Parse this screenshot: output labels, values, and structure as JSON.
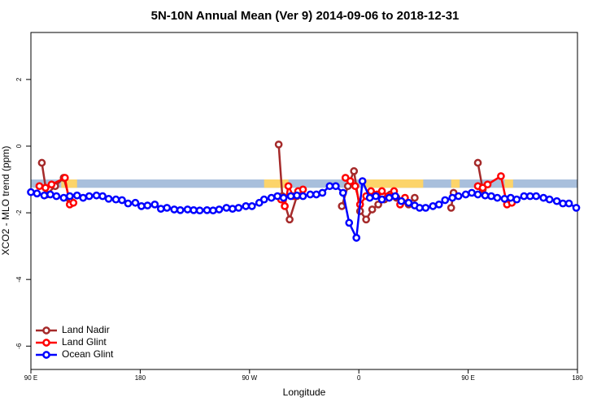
{
  "chart_data": {
    "type": "line",
    "title": "5N-10N Annual Mean (Ver 9)   2014-09-06 to 2018-12-31",
    "x_label": "Longitude",
    "y_label": "XCO2 - MLO trend (ppm)",
    "xlim": [
      90,
      540
    ],
    "ylim": [
      -6.7,
      3.41
    ],
    "xticks": [
      {
        "value": 90,
        "label": "90 E"
      },
      180,
      {
        "value": 270,
        "label": "90 W"
      },
      {
        "value": 360,
        "label": "0"
      },
      {
        "value": 450,
        "label": "90 E"
      },
      {
        "value": 540,
        "label": "180"
      }
    ],
    "yticks": [
      2,
      0,
      -2,
      -4,
      -6
    ],
    "legend": "bottom-left",
    "reference_band": {
      "color": "#a8bfdc",
      "range": [
        -1.25,
        -1
      ]
    },
    "highlight_ranges": {
      "color": "#fcd46a",
      "ranges": [
        [
          115,
          128
        ],
        [
          282,
          302
        ],
        [
          365,
          413
        ],
        [
          436,
          443
        ],
        [
          480,
          487
        ]
      ]
    },
    "series": [
      {
        "name": "Land Nadir",
        "color": "#a52a2a",
        "x": [
          99,
          103,
          110,
          117,
          122,
          124,
          294,
          297,
          303,
          309,
          313,
          340,
          346,
          351,
          356,
          361,
          366,
          371,
          376,
          381,
          386,
          391,
          396,
          401,
          406,
          408,
          436,
          438,
          452,
          458,
          462
        ],
        "values": [
          -0.5,
          -1.45,
          -1.2,
          -0.95,
          -1.6,
          null,
          0.05,
          -1.5,
          -2.2,
          -1.5,
          -1.35,
          null,
          -1.8,
          -1.2,
          -0.75,
          -1.95,
          -2.2,
          -1.9,
          -1.75,
          -1.6,
          -1.45,
          -1.55,
          -1.65,
          -1.75,
          -1.55,
          null,
          -1.85,
          -1.4,
          null,
          -0.5,
          -1.3
        ]
      },
      {
        "name": "Land Glint",
        "color": "#ff0000",
        "x": [
          97,
          102,
          107,
          118,
          122,
          125,
          200,
          296,
          299,
          302,
          306,
          310,
          314,
          330,
          349,
          353,
          357,
          361,
          366,
          370,
          375,
          379,
          384,
          389,
          394,
          398,
          420,
          458,
          462,
          466,
          477,
          482,
          486
        ],
        "values": [
          -1.2,
          -1.25,
          -1.15,
          -0.95,
          -1.75,
          -1.7,
          null,
          -1.6,
          -1.8,
          -1.2,
          -1.5,
          -1.35,
          -1.3,
          null,
          -0.95,
          -1.05,
          -1.2,
          -1.75,
          -1.5,
          -1.35,
          -1.45,
          -1.35,
          -1.5,
          -1.35,
          -1.75,
          -1.55,
          null,
          -1.2,
          -1.25,
          -1.15,
          -0.9,
          -1.75,
          -1.7
        ]
      },
      {
        "name": "Ocean Glint",
        "color": "#0000ff",
        "x": [
          90,
          95,
          101,
          106,
          111,
          117,
          122,
          128,
          133,
          138,
          144,
          149,
          154,
          160,
          165,
          170,
          176,
          181,
          186,
          192,
          197,
          202,
          208,
          213,
          219,
          224,
          229,
          235,
          240,
          245,
          251,
          256,
          261,
          267,
          272,
          278,
          282,
          288,
          293,
          298,
          304,
          309,
          314,
          320,
          325,
          330,
          336,
          341,
          347,
          352,
          358,
          363,
          369,
          374,
          379,
          385,
          390,
          395,
          401,
          406,
          410,
          415,
          421,
          426,
          431,
          437,
          442,
          448,
          453,
          458,
          464,
          469,
          474,
          480,
          485,
          490,
          496,
          501,
          506,
          512,
          517,
          523,
          528,
          533,
          539
        ],
        "values": [
          -1.38,
          -1.42,
          -1.48,
          -1.45,
          -1.5,
          -1.55,
          -1.5,
          -1.48,
          -1.55,
          -1.5,
          -1.48,
          -1.5,
          -1.58,
          -1.6,
          -1.62,
          -1.72,
          -1.7,
          -1.8,
          -1.78,
          -1.75,
          -1.88,
          -1.85,
          -1.9,
          -1.92,
          -1.9,
          -1.92,
          -1.93,
          -1.92,
          -1.93,
          -1.9,
          -1.85,
          -1.88,
          -1.85,
          -1.8,
          -1.8,
          -1.7,
          -1.6,
          -1.55,
          -1.5,
          -1.55,
          -1.5,
          -1.48,
          -1.5,
          -1.45,
          -1.45,
          -1.4,
          -1.2,
          -1.2,
          -1.4,
          -2.3,
          -2.75,
          -1.05,
          -1.55,
          -1.5,
          -1.6,
          -1.55,
          -1.5,
          -1.65,
          -1.7,
          -1.78,
          -1.85,
          -1.85,
          -1.8,
          -1.75,
          -1.62,
          -1.55,
          -1.5,
          -1.45,
          -1.4,
          -1.45,
          -1.48,
          -1.5,
          -1.55,
          -1.58,
          -1.55,
          -1.6,
          -1.5,
          -1.5,
          -1.5,
          -1.55,
          -1.6,
          -1.65,
          -1.72,
          -1.72,
          -1.85
        ]
      }
    ]
  }
}
